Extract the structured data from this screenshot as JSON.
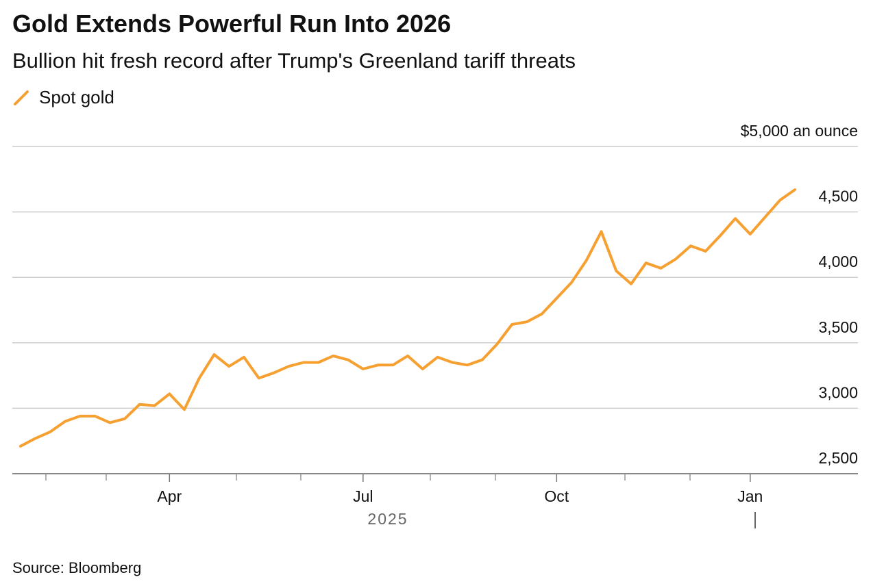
{
  "chart_data": {
    "type": "line",
    "title": "Gold Extends Powerful Run Into 2026",
    "subtitle": "Bullion hit fresh record after Trump's Greenland tariff threats",
    "source": "Source: Bloomberg",
    "year_label": "2025",
    "categories": [
      null,
      null,
      null,
      null,
      null,
      null,
      null,
      null,
      null,
      null,
      "Apr",
      null,
      null,
      null,
      null,
      null,
      null,
      null,
      null,
      null,
      null,
      null,
      null,
      "Jul",
      null,
      null,
      null,
      null,
      null,
      null,
      null,
      null,
      null,
      null,
      null,
      null,
      "Oct",
      null,
      null,
      null,
      null,
      null,
      null,
      null,
      null,
      null,
      null,
      null,
      null,
      "Jan",
      null,
      null,
      null
    ],
    "series": [
      {
        "name": "Spot gold",
        "color": "#f5a031",
        "values": [
          2710,
          2770,
          2820,
          2900,
          2940,
          2940,
          2890,
          2920,
          3030,
          3020,
          3110,
          2990,
          3230,
          3410,
          3320,
          3390,
          3230,
          3270,
          3320,
          3350,
          3350,
          3400,
          3370,
          3300,
          3330,
          3330,
          3400,
          3300,
          3390,
          3350,
          3330,
          3370,
          3490,
          3640,
          3660,
          3720,
          3840,
          3960,
          4130,
          4350,
          4050,
          3950,
          4110,
          4070,
          4140,
          4240,
          4200,
          4320,
          4450,
          4330,
          4460,
          4590,
          4670
        ]
      }
    ],
    "ylim": [
      2500,
      5000
    ],
    "yticks": [
      {
        "value": 2500,
        "label": "2,500"
      },
      {
        "value": 3000,
        "label": "3,000"
      },
      {
        "value": 3500,
        "label": "3,500"
      },
      {
        "value": 4000,
        "label": "4,000"
      },
      {
        "value": 4500,
        "label": "4,500"
      },
      {
        "value": 5000,
        "label": "$5,000 an ounce"
      }
    ],
    "grid": true
  }
}
